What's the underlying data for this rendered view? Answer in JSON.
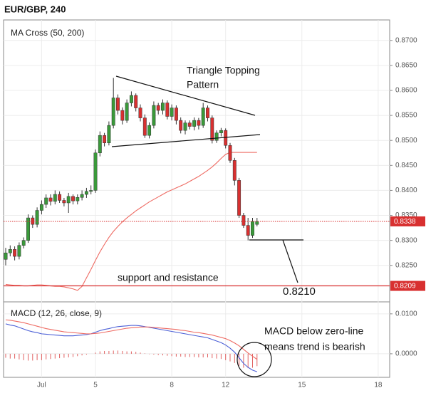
{
  "chart_data": [
    {
      "type": "candlestick",
      "title": "EUR/GBP, 240",
      "subtitle": "MA Cross (50, 200)",
      "categories": [
        null,
        null,
        null,
        null,
        null,
        null,
        null,
        null,
        "Jul",
        null,
        null,
        null,
        null,
        null,
        null,
        null,
        null,
        null,
        null,
        null,
        "5",
        null,
        null,
        null,
        null,
        null,
        null,
        null,
        null,
        null,
        null,
        null,
        null,
        null,
        null,
        null,
        null,
        "8",
        null,
        null,
        null,
        null,
        null,
        null,
        null,
        null,
        null,
        null,
        null,
        "12",
        null,
        null,
        null,
        null,
        null,
        null,
        null,
        null,
        null,
        null,
        null,
        null,
        null,
        null,
        null,
        null,
        "15",
        null,
        null,
        null,
        null,
        null,
        null,
        null,
        null,
        null,
        null,
        null,
        null,
        null,
        null,
        null,
        null,
        "18",
        null,
        null
      ],
      "open": [
        0.8262,
        0.8275,
        0.8282,
        0.8268,
        0.829,
        0.83,
        0.8345,
        0.8332,
        0.836,
        0.8372,
        0.8385,
        0.8378,
        0.8392,
        0.838,
        0.8375,
        0.8388,
        0.8379,
        0.8386,
        0.8392,
        0.8398,
        0.84,
        0.8475,
        0.851,
        0.8495,
        0.853,
        0.8585,
        0.856,
        0.854,
        0.8575,
        0.859,
        0.8565,
        0.8545,
        0.851,
        0.853,
        0.857,
        0.856,
        0.8575,
        0.8548,
        0.8565,
        0.854,
        0.852,
        0.8535,
        0.8528,
        0.854,
        0.853,
        0.8565,
        0.8545,
        0.85,
        0.8515,
        0.852,
        0.849,
        0.846,
        0.842,
        0.835,
        0.833,
        0.831,
        0.8332,
        null,
        null,
        null,
        null,
        null,
        null,
        null,
        null,
        null,
        null,
        null,
        null,
        null,
        null,
        null,
        null,
        null,
        null,
        null,
        null,
        null,
        null,
        null,
        null,
        null,
        null,
        null,
        null,
        null
      ],
      "high": [
        0.8285,
        0.829,
        0.8288,
        0.8296,
        0.8306,
        0.8352,
        0.835,
        0.8366,
        0.838,
        0.8392,
        0.8392,
        0.84,
        0.8398,
        0.8385,
        0.8395,
        0.8392,
        0.8392,
        0.84,
        0.8405,
        0.841,
        0.8482,
        0.8518,
        0.8515,
        0.8538,
        0.8625,
        0.8592,
        0.8566,
        0.8582,
        0.8598,
        0.8594,
        0.8572,
        0.8552,
        0.8536,
        0.8578,
        0.8575,
        0.8582,
        0.858,
        0.8572,
        0.857,
        0.8546,
        0.854,
        0.854,
        0.8546,
        0.8545,
        0.8575,
        0.857,
        0.855,
        0.852,
        0.8525,
        0.8524,
        0.8495,
        0.8465,
        0.8425,
        0.8355,
        0.8345,
        0.8345,
        0.8345,
        null,
        null,
        null,
        null,
        null,
        null,
        null,
        null,
        null,
        null,
        null,
        null,
        null,
        null,
        null,
        null,
        null,
        null,
        null,
        null,
        null,
        null,
        null,
        null,
        null,
        null,
        null,
        null,
        null
      ],
      "low": [
        0.825,
        0.8268,
        0.826,
        0.8262,
        0.8284,
        0.8295,
        0.8325,
        0.8326,
        0.8352,
        0.8365,
        0.837,
        0.8372,
        0.8375,
        0.8368,
        0.8355,
        0.8372,
        0.8372,
        0.838,
        0.8385,
        0.8392,
        0.8395,
        0.8468,
        0.8488,
        0.849,
        0.8524,
        0.8552,
        0.8532,
        0.8535,
        0.8568,
        0.8558,
        0.8538,
        0.8505,
        0.8504,
        0.8524,
        0.8552,
        0.8552,
        0.8542,
        0.854,
        0.8532,
        0.8514,
        0.8512,
        0.8522,
        0.852,
        0.8522,
        0.8525,
        0.8538,
        0.8494,
        0.8495,
        0.8508,
        0.8484,
        0.8455,
        0.841,
        0.8345,
        0.8325,
        0.83,
        0.8305,
        0.8328,
        null,
        null,
        null,
        null,
        null,
        null,
        null,
        null,
        null,
        null,
        null,
        null,
        null,
        null,
        null,
        null,
        null,
        null,
        null,
        null,
        null,
        null,
        null,
        null,
        null,
        null,
        null,
        null,
        null
      ],
      "close": [
        0.8275,
        0.8282,
        0.8268,
        0.829,
        0.83,
        0.8345,
        0.8332,
        0.836,
        0.8372,
        0.8385,
        0.8378,
        0.8392,
        0.838,
        0.8375,
        0.8388,
        0.8379,
        0.8386,
        0.8392,
        0.8398,
        0.84,
        0.8475,
        0.851,
        0.8495,
        0.853,
        0.8585,
        0.856,
        0.854,
        0.8575,
        0.859,
        0.8565,
        0.8545,
        0.851,
        0.853,
        0.857,
        0.856,
        0.8575,
        0.8548,
        0.8565,
        0.854,
        0.852,
        0.8535,
        0.8528,
        0.854,
        0.853,
        0.8565,
        0.8545,
        0.85,
        0.8515,
        0.852,
        0.849,
        0.846,
        0.842,
        0.835,
        0.833,
        0.831,
        0.8338,
        0.8338,
        null,
        null,
        null,
        null,
        null,
        null,
        null,
        null,
        null,
        null,
        null,
        null,
        null,
        null,
        null,
        null,
        null,
        null,
        null,
        null,
        null,
        null,
        null,
        null,
        null,
        null,
        null,
        null,
        null
      ],
      "up_color": "#3a9a3a",
      "down_color": "#d83030",
      "series": [
        {
          "color": "#ee6a62",
          "values": [
            0.8212,
            0.8211,
            0.821,
            0.821,
            0.8209,
            0.8209,
            0.821,
            0.8211,
            0.8211,
            0.821,
            0.8209,
            0.8208,
            0.8208,
            0.8207,
            0.8205,
            0.8203,
            0.82,
            0.8208,
            0.8225,
            0.8242,
            0.826,
            0.8277,
            0.8292,
            0.8306,
            0.8318,
            0.8328,
            0.8337,
            0.8345,
            0.8352,
            0.8359,
            0.8365,
            0.8371,
            0.8377,
            0.8382,
            0.8387,
            0.8392,
            0.8397,
            0.8401,
            0.8405,
            0.8409,
            0.8413,
            0.8418,
            0.8423,
            0.8428,
            0.8434,
            0.844,
            0.8447,
            0.8455,
            0.8464,
            0.8472,
            0.8476,
            0.8476,
            0.8476,
            0.8476,
            0.8476,
            0.8476,
            0.8476,
            null,
            null,
            null,
            null,
            null,
            null,
            null,
            null,
            null,
            null,
            null,
            null,
            null,
            null,
            null,
            null,
            null,
            null,
            null,
            null,
            null,
            null,
            null,
            null,
            null,
            null,
            null,
            null,
            null
          ]
        }
      ],
      "ylim": [
        0.8177,
        0.8741
      ],
      "yticks": [
        {
          "value": 0.825,
          "label": "0.8250"
        },
        {
          "value": 0.83,
          "label": "0.8300"
        },
        {
          "value": 0.835,
          "label": "0.8350"
        },
        {
          "value": 0.84,
          "label": "0.8400"
        },
        {
          "value": 0.845,
          "label": "0.8450"
        },
        {
          "value": 0.85,
          "label": "0.8500"
        },
        {
          "value": 0.855,
          "label": "0.8550"
        },
        {
          "value": 0.86,
          "label": "0.8600"
        },
        {
          "value": 0.865,
          "label": "0.8650"
        },
        {
          "value": 0.87,
          "label": "0.8700"
        }
      ],
      "grid": true,
      "price_lines": [
        {
          "value": 0.8338,
          "color": "#d83030",
          "style": "dotted"
        },
        {
          "value": 0.8209,
          "color": "#d83030",
          "style": "solid"
        }
      ],
      "annotations": [
        "Triangle Topping",
        "Pattern",
        "support and resistance",
        "0.8210",
        "MACD below zero-line",
        "means trend is bearish"
      ]
    },
    {
      "type": "macd",
      "title": "MACD (12, 26, close, 9)",
      "series": [
        {
          "color": "#4b5fd6",
          "values": [
            0.0075,
            0.0072,
            0.007,
            0.0066,
            0.0062,
            0.0058,
            0.0055,
            0.0053,
            0.005,
            0.0049,
            0.0048,
            0.0047,
            0.0046,
            0.0045,
            0.0045,
            0.0045,
            0.0046,
            0.0047,
            0.0048,
            0.005,
            0.0054,
            0.0058,
            0.0061,
            0.0063,
            0.0066,
            0.0068,
            0.0069,
            0.007,
            0.0071,
            0.0071,
            0.007,
            0.0068,
            0.0066,
            0.0064,
            0.0062,
            0.006,
            0.0058,
            0.0056,
            0.0054,
            0.0052,
            0.005,
            0.0048,
            0.0046,
            0.0044,
            0.0042,
            0.004,
            0.0036,
            0.0032,
            0.0028,
            0.0022,
            0.0014,
            0.0004,
            -0.001,
            -0.0024,
            -0.0034,
            -0.0041,
            -0.0045,
            null,
            null,
            null,
            null,
            null,
            null,
            null,
            null,
            null,
            null,
            null,
            null,
            null,
            null,
            null,
            null,
            null,
            null,
            null,
            null,
            null,
            null,
            null,
            null,
            null,
            null,
            null,
            null,
            null
          ]
        },
        {
          "color": "#ee6a62",
          "values": [
            0.0085,
            0.0084,
            0.0082,
            0.008,
            0.0078,
            0.0075,
            0.0072,
            0.0069,
            0.0066,
            0.0063,
            0.0061,
            0.0059,
            0.0057,
            0.0055,
            0.0054,
            0.0053,
            0.0052,
            0.0051,
            0.005,
            0.005,
            0.0051,
            0.0052,
            0.0054,
            0.0056,
            0.0058,
            0.006,
            0.0062,
            0.0064,
            0.0065,
            0.0066,
            0.0067,
            0.0067,
            0.0067,
            0.0066,
            0.0065,
            0.0064,
            0.0063,
            0.0062,
            0.0061,
            0.0059,
            0.0058,
            0.0056,
            0.0054,
            0.0053,
            0.0051,
            0.0049,
            0.0047,
            0.0044,
            0.0041,
            0.0038,
            0.0033,
            0.0027,
            0.002,
            0.0011,
            0.0002,
            -0.0006,
            -0.0014,
            null,
            null,
            null,
            null,
            null,
            null,
            null,
            null,
            null,
            null,
            null,
            null,
            null,
            null,
            null,
            null,
            null,
            null,
            null,
            null,
            null,
            null,
            null,
            null,
            null,
            null,
            null,
            null,
            null
          ]
        }
      ],
      "histogram": {
        "color": "#e06060",
        "values": [
          -0.001,
          -0.0012,
          -0.0012,
          -0.0014,
          -0.0016,
          -0.0017,
          -0.0017,
          -0.0016,
          -0.0016,
          -0.0014,
          -0.0013,
          -0.0012,
          -0.0011,
          -0.001,
          -0.0009,
          -0.0008,
          -0.0006,
          -0.0004,
          -0.0002,
          0.0,
          0.0003,
          0.0006,
          0.0007,
          0.0007,
          0.0008,
          0.0008,
          0.0007,
          0.0006,
          0.0006,
          0.0005,
          0.0003,
          0.0001,
          -0.0001,
          -0.0002,
          -0.0003,
          -0.0004,
          -0.0005,
          -0.0006,
          -0.0007,
          -0.0007,
          -0.0008,
          -0.0008,
          -0.0008,
          -0.0009,
          -0.0009,
          -0.0009,
          -0.0011,
          -0.0012,
          -0.0013,
          -0.0016,
          -0.0019,
          -0.0023,
          -0.003,
          -0.0035,
          -0.0036,
          -0.0035,
          -0.0031,
          null,
          null,
          null,
          null,
          null,
          null,
          null,
          null,
          null,
          null,
          null,
          null,
          null,
          null,
          null,
          null,
          null,
          null,
          null,
          null,
          null,
          null,
          null,
          null,
          null,
          null,
          null,
          null,
          null
        ]
      },
      "ylim": [
        -0.0059,
        0.013
      ],
      "yticks": [
        {
          "value": 0,
          "label": "0.0000"
        },
        {
          "value": 0.01,
          "label": "0.0100"
        }
      ],
      "grid": true
    }
  ]
}
